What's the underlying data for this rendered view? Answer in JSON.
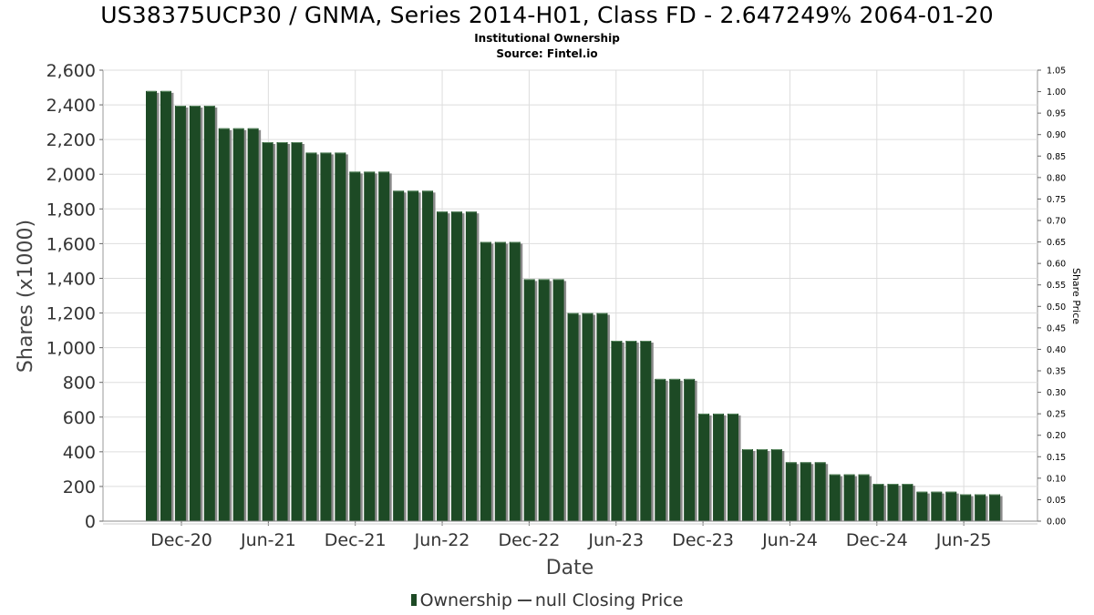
{
  "header": {
    "title": "US38375UCP30 / GNMA, Series 2014-H01, Class FD - 2.647249% 2064-01-20",
    "subtitle": "Institutional Ownership",
    "source": "Source: Fintel.io"
  },
  "legend": {
    "ownership": "Ownership",
    "closing_price": "null Closing Price"
  },
  "colors": {
    "bar": "#1d4a25",
    "bar_shadow": "#8a8a8a",
    "grid": "#dddddd"
  },
  "chart_data": {
    "type": "bar",
    "xlabel": "Date",
    "ylabel": "Shares (x1000)",
    "y2label": "Share Price",
    "ylim": [
      0,
      2600
    ],
    "y2lim": [
      0,
      1.05
    ],
    "yticks": [
      0,
      200,
      400,
      600,
      800,
      1000,
      1200,
      1400,
      1600,
      1800,
      2000,
      2200,
      2400,
      2600
    ],
    "y2ticks": [
      "0.00",
      "0.05",
      "0.10",
      "0.15",
      "0.20",
      "0.25",
      "0.30",
      "0.35",
      "0.40",
      "0.45",
      "0.50",
      "0.55",
      "0.60",
      "0.65",
      "0.70",
      "0.75",
      "0.80",
      "0.85",
      "0.90",
      "0.95",
      "1.00",
      "1.05"
    ],
    "xticks": [
      "Dec-20",
      "Jun-21",
      "Dec-21",
      "Jun-22",
      "Dec-22",
      "Jun-23",
      "Dec-23",
      "Jun-24",
      "Dec-24",
      "Jun-25"
    ],
    "grid": true,
    "legend_position": "bottom",
    "series": [
      {
        "name": "Ownership",
        "values": [
          2480,
          2480,
          2395,
          2395,
          2395,
          2265,
          2265,
          2265,
          2185,
          2185,
          2185,
          2125,
          2125,
          2125,
          2015,
          2015,
          2015,
          1905,
          1905,
          1905,
          1785,
          1785,
          1785,
          1610,
          1610,
          1610,
          1395,
          1395,
          1395,
          1200,
          1200,
          1200,
          1040,
          1040,
          1040,
          820,
          820,
          820,
          620,
          620,
          620,
          415,
          415,
          415,
          340,
          340,
          340,
          270,
          270,
          270,
          215,
          215,
          215,
          170,
          170,
          170,
          155,
          155,
          155
        ]
      }
    ]
  }
}
